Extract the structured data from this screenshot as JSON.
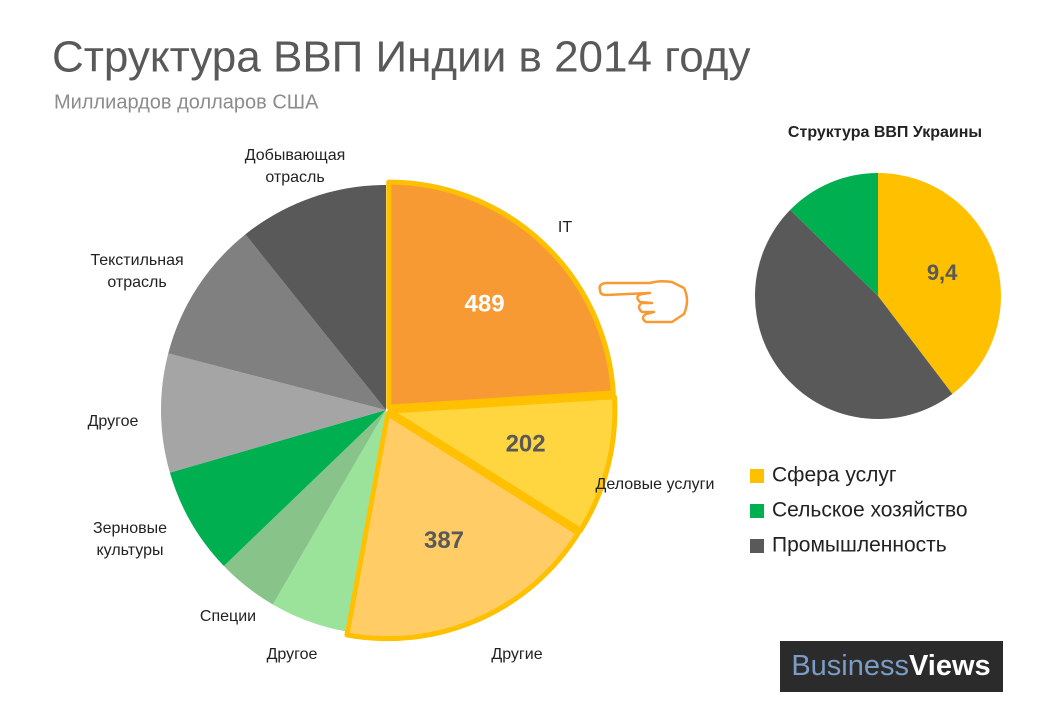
{
  "chart_data": [
    {
      "type": "pie",
      "title": "Структура ВВП Индии в 2014 году",
      "subtitle": "Миллиардов долларов США",
      "categories": [
        "IT",
        "Деловые услуги",
        "Другие",
        "Другое",
        "Специи",
        "Зерновые культуры",
        "Другое",
        "Текстильная отрасль",
        "Добывающая отрасль"
      ],
      "values": [
        489,
        202,
        387,
        112,
        90,
        157,
        174,
        208,
        219
      ],
      "value_labels": [
        "489",
        "202",
        "387",
        null,
        null,
        null,
        null,
        null,
        null
      ],
      "colors": [
        "#f79a34",
        "#ffd540",
        "#ffcc66",
        "#9be39b",
        "#88c48a",
        "#00b050",
        "#a5a5a5",
        "#808080",
        "#595959"
      ],
      "highlighted": [
        0,
        1,
        2
      ],
      "outline_color": "#ffc000"
    },
    {
      "type": "pie",
      "title": "Структура ВВП Украины",
      "categories": [
        "Сфера услуг",
        "Промышленность",
        "Сельское хозяйство"
      ],
      "values": [
        9.4,
        11.3,
        3.0
      ],
      "value_labels": [
        "9,4",
        null,
        null
      ],
      "colors": [
        "#ffc000",
        "#595959",
        "#00b050"
      ],
      "legend": "right"
    }
  ],
  "logo": {
    "first": "Business",
    "second": "Views"
  }
}
